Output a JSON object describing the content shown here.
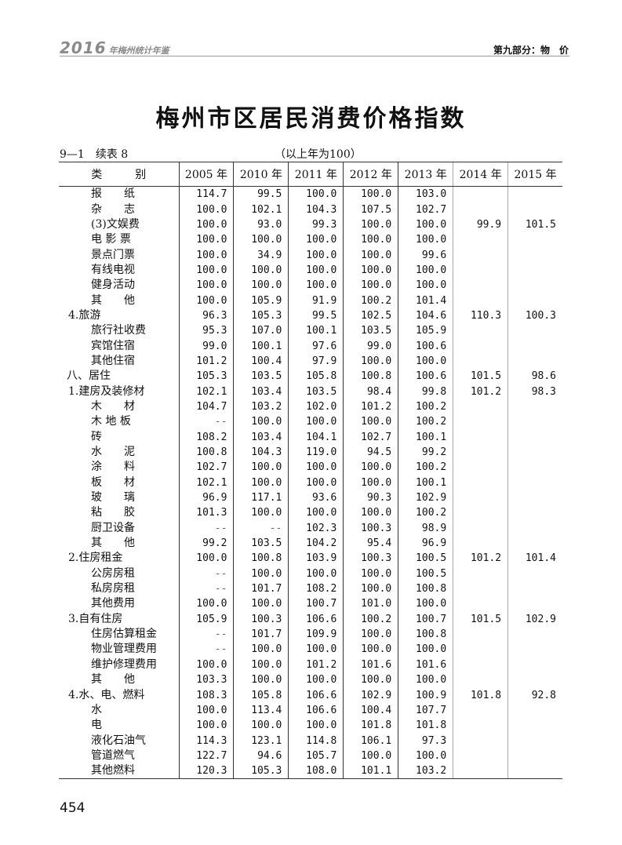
{
  "header": {
    "year": "2016",
    "book": "年梅州统计年鉴",
    "section": "第九部分：物　价"
  },
  "title": "梅州市区居民消费价格指数",
  "table_no": "9—1　续表 8",
  "base_note": "（以上年为100）",
  "columns": [
    "类　　　别",
    "2005 年",
    "2010 年",
    "2011 年",
    "2012 年",
    "2013 年",
    "2014 年",
    "2015 年"
  ],
  "rows": [
    {
      "label": "报　　纸",
      "level": 2,
      "values": [
        "114.7",
        "99.5",
        "100.0",
        "100.0",
        "103.0",
        "",
        ""
      ]
    },
    {
      "label": "杂　　志",
      "level": 2,
      "values": [
        "100.0",
        "102.1",
        "104.3",
        "107.5",
        "102.7",
        "",
        ""
      ]
    },
    {
      "label": "(3)文娱费",
      "level": 2,
      "values": [
        "100.0",
        "93.0",
        "99.3",
        "100.0",
        "100.0",
        "99.9",
        "101.5"
      ]
    },
    {
      "label": "电 影 票",
      "level": 2,
      "values": [
        "100.0",
        "100.0",
        "100.0",
        "100.0",
        "100.0",
        "",
        ""
      ]
    },
    {
      "label": "景点门票",
      "level": 2,
      "values": [
        "100.0",
        "34.9",
        "100.0",
        "100.0",
        "99.6",
        "",
        ""
      ]
    },
    {
      "label": "有线电视",
      "level": 2,
      "values": [
        "100.0",
        "100.0",
        "100.0",
        "100.0",
        "100.0",
        "",
        ""
      ]
    },
    {
      "label": "健身活动",
      "level": 2,
      "values": [
        "100.0",
        "100.0",
        "100.0",
        "100.0",
        "100.0",
        "",
        ""
      ]
    },
    {
      "label": "其　　他",
      "level": 2,
      "values": [
        "100.0",
        "105.9",
        "91.9",
        "100.2",
        "101.4",
        "",
        ""
      ]
    },
    {
      "label": "4.旅游",
      "level": 1,
      "values": [
        "96.3",
        "105.3",
        "99.5",
        "102.5",
        "104.6",
        "110.3",
        "100.3"
      ]
    },
    {
      "label": "旅行社收费",
      "level": 2,
      "values": [
        "95.3",
        "107.0",
        "100.1",
        "103.5",
        "105.9",
        "",
        ""
      ]
    },
    {
      "label": "宾馆住宿",
      "level": 2,
      "values": [
        "99.0",
        "100.1",
        "97.6",
        "99.0",
        "100.6",
        "",
        ""
      ]
    },
    {
      "label": "其他住宿",
      "level": 2,
      "values": [
        "101.2",
        "100.4",
        "97.9",
        "100.0",
        "100.0",
        "",
        ""
      ]
    },
    {
      "label": "八、居住",
      "level": 0,
      "values": [
        "105.3",
        "103.5",
        "105.8",
        "100.8",
        "100.6",
        "101.5",
        "98.6"
      ]
    },
    {
      "label": "1.建房及装修材",
      "level": 1,
      "values": [
        "102.1",
        "103.4",
        "103.5",
        "98.4",
        "99.8",
        "101.2",
        "98.3"
      ]
    },
    {
      "label": "木　　材",
      "level": 2,
      "values": [
        "104.7",
        "103.2",
        "102.0",
        "101.2",
        "100.2",
        "",
        ""
      ]
    },
    {
      "label": "木 地 板",
      "level": 2,
      "values": [
        "--",
        "100.0",
        "100.0",
        "100.0",
        "100.2",
        "",
        ""
      ]
    },
    {
      "label": "砖",
      "level": 2,
      "values": [
        "108.2",
        "103.4",
        "104.1",
        "102.7",
        "100.1",
        "",
        ""
      ]
    },
    {
      "label": "水　　泥",
      "level": 2,
      "values": [
        "100.8",
        "104.3",
        "119.0",
        "94.5",
        "99.2",
        "",
        ""
      ]
    },
    {
      "label": "涂　　料",
      "level": 2,
      "values": [
        "102.7",
        "100.0",
        "100.0",
        "100.0",
        "100.2",
        "",
        ""
      ]
    },
    {
      "label": "板　　材",
      "level": 2,
      "values": [
        "102.1",
        "100.0",
        "100.0",
        "100.0",
        "100.1",
        "",
        ""
      ]
    },
    {
      "label": "玻　　璃",
      "level": 2,
      "values": [
        "96.9",
        "117.1",
        "93.6",
        "90.3",
        "102.9",
        "",
        ""
      ]
    },
    {
      "label": "粘　　胶",
      "level": 2,
      "values": [
        "101.3",
        "100.0",
        "100.0",
        "100.0",
        "100.2",
        "",
        ""
      ]
    },
    {
      "label": "厨卫设备",
      "level": 2,
      "values": [
        "--",
        "--",
        "102.3",
        "100.3",
        "98.9",
        "",
        ""
      ]
    },
    {
      "label": "其　　他",
      "level": 2,
      "values": [
        "99.2",
        "103.5",
        "104.2",
        "95.4",
        "96.9",
        "",
        ""
      ]
    },
    {
      "label": "2.住房租金",
      "level": 1,
      "values": [
        "100.0",
        "100.8",
        "103.9",
        "100.3",
        "100.5",
        "101.2",
        "101.4"
      ]
    },
    {
      "label": "公房房租",
      "level": 2,
      "values": [
        "--",
        "100.0",
        "100.0",
        "100.0",
        "100.5",
        "",
        ""
      ]
    },
    {
      "label": "私房房租",
      "level": 2,
      "values": [
        "--",
        "101.7",
        "108.2",
        "100.0",
        "100.8",
        "",
        ""
      ]
    },
    {
      "label": "其他费用",
      "level": 2,
      "values": [
        "100.0",
        "100.0",
        "100.7",
        "101.0",
        "100.0",
        "",
        ""
      ]
    },
    {
      "label": "3.自有住房",
      "level": 1,
      "values": [
        "105.9",
        "100.3",
        "106.6",
        "100.2",
        "100.7",
        "101.5",
        "102.9"
      ]
    },
    {
      "label": "住房估算租金",
      "level": 2,
      "values": [
        "--",
        "101.7",
        "109.9",
        "100.0",
        "100.8",
        "",
        ""
      ]
    },
    {
      "label": "物业管理费用",
      "level": 2,
      "values": [
        "--",
        "100.0",
        "100.0",
        "100.0",
        "100.0",
        "",
        ""
      ]
    },
    {
      "label": "维护修理费用",
      "level": 2,
      "values": [
        "100.0",
        "100.0",
        "101.2",
        "101.6",
        "101.6",
        "",
        ""
      ]
    },
    {
      "label": "其　　他",
      "level": 2,
      "values": [
        "103.3",
        "100.0",
        "100.0",
        "100.0",
        "100.0",
        "",
        ""
      ]
    },
    {
      "label": "4.水、电、燃料",
      "level": 1,
      "values": [
        "108.3",
        "105.8",
        "106.6",
        "102.9",
        "100.9",
        "101.8",
        "92.8"
      ]
    },
    {
      "label": "水",
      "level": 2,
      "values": [
        "100.0",
        "113.4",
        "106.6",
        "100.4",
        "107.7",
        "",
        ""
      ]
    },
    {
      "label": "电",
      "level": 2,
      "values": [
        "100.0",
        "100.0",
        "100.0",
        "101.8",
        "101.8",
        "",
        ""
      ]
    },
    {
      "label": "液化石油气",
      "level": 2,
      "values": [
        "114.3",
        "123.1",
        "114.8",
        "106.1",
        "97.3",
        "",
        ""
      ]
    },
    {
      "label": "管道燃气",
      "level": 2,
      "values": [
        "122.7",
        "94.6",
        "105.7",
        "100.0",
        "100.0",
        "",
        ""
      ]
    },
    {
      "label": "其他燃料",
      "level": 2,
      "values": [
        "120.3",
        "105.3",
        "108.0",
        "101.1",
        "103.2",
        "",
        ""
      ]
    }
  ],
  "page_number": "454"
}
